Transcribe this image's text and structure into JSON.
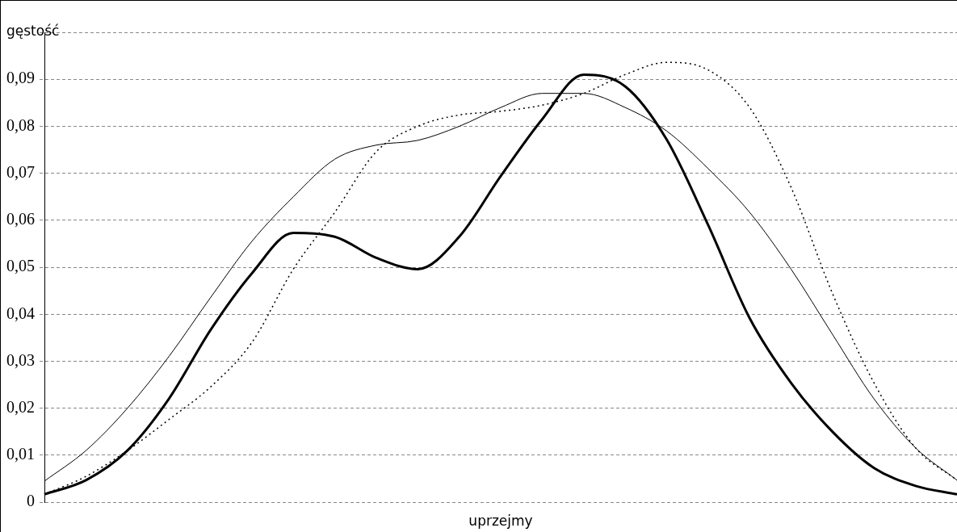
{
  "chart_data": {
    "type": "line",
    "ylabel": "gęstość",
    "xlabel": "uprzejmy",
    "categories": [
      null,
      null,
      null,
      null,
      null,
      null,
      null,
      null,
      null,
      null,
      null,
      null,
      null,
      null,
      null,
      null,
      null,
      null,
      null,
      null,
      null,
      null,
      null
    ],
    "ylim": [
      0,
      0.1
    ],
    "yticks": [
      0,
      {
        "value": 0.01,
        "label": "0,01"
      },
      {
        "value": 0.02,
        "label": "0,02"
      },
      {
        "value": 0.03,
        "label": "0,03"
      },
      {
        "value": 0.04,
        "label": "0,04"
      },
      {
        "value": 0.05,
        "label": "0,05"
      },
      {
        "value": 0.06,
        "label": "0,06"
      },
      {
        "value": 0.07,
        "label": "0,07"
      },
      {
        "value": 0.08,
        "label": "0,08"
      },
      {
        "value": 0.09,
        "label": "0,09"
      },
      {
        "value": 0.1,
        "label": null
      }
    ],
    "grid": "y",
    "marker": "none",
    "series": [
      {
        "color": "#000000",
        "line_style": "solid",
        "values": [
          0.0045,
          0.011,
          0.02,
          0.031,
          0.0435,
          0.0555,
          0.065,
          0.073,
          0.076,
          0.077,
          0.08,
          0.084,
          0.087,
          0.087,
          0.084,
          0.079,
          0.071,
          0.0617,
          0.0496,
          0.0357,
          0.022,
          0.0116,
          0.0047
        ]
      },
      {
        "color": "#000000",
        "line_style": "solid",
        "values": [
          0.0017,
          0.0047,
          0.011,
          0.022,
          0.0366,
          0.0487,
          0.0573,
          0.0565,
          0.052,
          0.0496,
          0.0565,
          0.0694,
          0.0815,
          0.091,
          0.0885,
          0.0772,
          0.059,
          0.0392,
          0.0254,
          0.015,
          0.0073,
          0.0035,
          0.0017
        ]
      },
      {
        "color": "#000000",
        "line_style": "dotted",
        "values": [
          0.0017,
          0.0055,
          0.011,
          0.0176,
          0.0245,
          0.034,
          0.0496,
          0.0617,
          0.0746,
          0.08,
          0.0824,
          0.0832,
          0.0845,
          0.087,
          0.091,
          0.0936,
          0.092,
          0.084,
          0.067,
          0.0444,
          0.0254,
          0.0116,
          0.0047
        ]
      }
    ]
  }
}
